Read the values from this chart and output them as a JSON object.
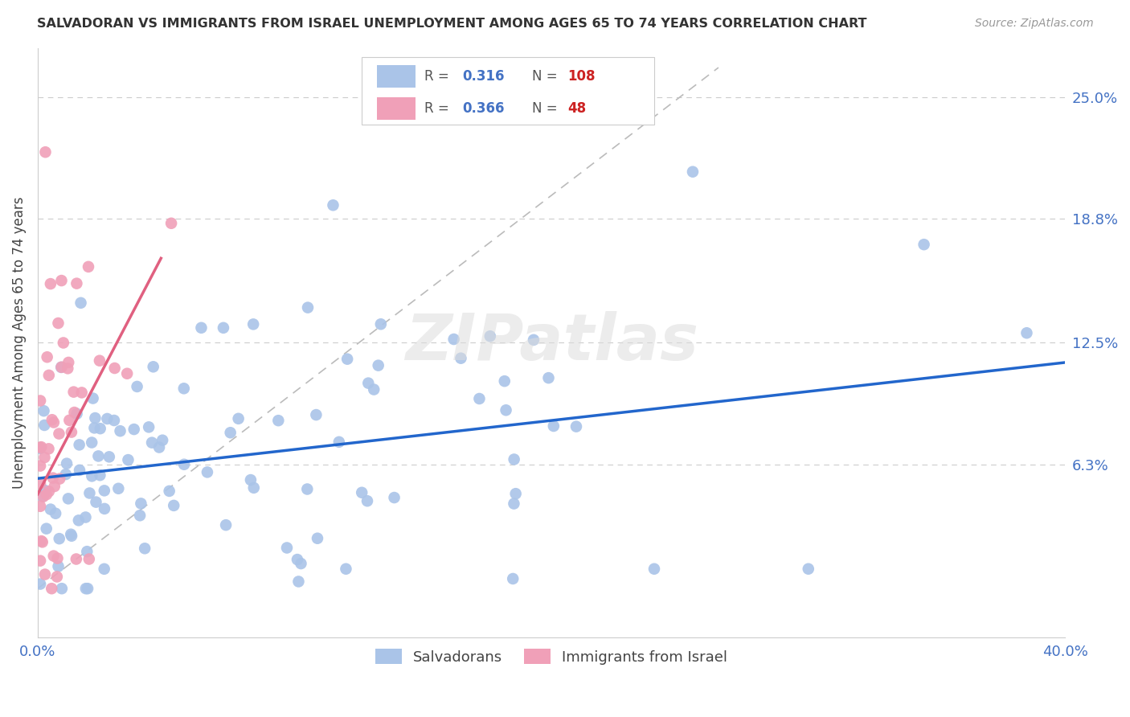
{
  "title": "SALVADORAN VS IMMIGRANTS FROM ISRAEL UNEMPLOYMENT AMONG AGES 65 TO 74 YEARS CORRELATION CHART",
  "source": "Source: ZipAtlas.com",
  "ylabel": "Unemployment Among Ages 65 to 74 years",
  "ytick_labels": [
    "25.0%",
    "18.8%",
    "12.5%",
    "6.3%"
  ],
  "ytick_values": [
    0.25,
    0.188,
    0.125,
    0.063
  ],
  "xlim": [
    0.0,
    0.4
  ],
  "ylim": [
    -0.025,
    0.275
  ],
  "salvadorans_color": "#aac4e8",
  "israel_color": "#f0a0b8",
  "trend_salvadorans_color": "#2266cc",
  "trend_israel_color": "#e06080",
  "watermark": "ZIPatlas",
  "R_sal": "0.316",
  "N_sal": "108",
  "R_isr": "0.366",
  "N_isr": "48",
  "R_color": "#4472c4",
  "N_color": "#cc2222",
  "label_color": "#555555",
  "sal_trend_x": [
    0.0,
    0.4
  ],
  "sal_trend_y": [
    0.056,
    0.115
  ],
  "isr_trend_x": [
    0.0,
    0.048
  ],
  "isr_trend_y": [
    0.048,
    0.168
  ],
  "ref_line_x": [
    0.0,
    0.265
  ],
  "ref_line_y": [
    0.0,
    0.265
  ]
}
